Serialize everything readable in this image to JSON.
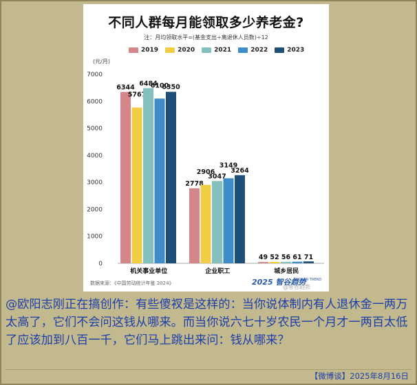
{
  "chart_data": {
    "type": "bar",
    "title": "不同人群每月能领取多少养老金?",
    "note": "注：月均领取水平=(基金支出÷离退休人员数)÷12",
    "unit_label": "(元/月)",
    "categories": [
      "机关事业单位",
      "企业职工",
      "城乡居民"
    ],
    "series": [
      {
        "name": "2019",
        "color": "#d4868a",
        "values": [
          6344,
          2778,
          49
        ]
      },
      {
        "name": "2020",
        "color": "#f1cd45",
        "values": [
          5767,
          2906,
          52
        ]
      },
      {
        "name": "2021",
        "color": "#84c0bd",
        "values": [
          6484,
          3047,
          56
        ]
      },
      {
        "name": "2022",
        "color": "#3f8dc8",
        "values": [
          6100,
          3149,
          61
        ]
      },
      {
        "name": "2023",
        "color": "#1e4f78",
        "values": [
          6350,
          3264,
          71
        ]
      }
    ],
    "ylim": [
      0,
      7000
    ],
    "yticks": [
      0,
      1000,
      2000,
      3000,
      4000,
      5000,
      6000,
      7000
    ],
    "grid": false,
    "legend_position": "top"
  },
  "source": "数据来源：《中国劳动统计年鉴 2024》",
  "brand": "2025 智谷趋势",
  "brand_sub": "TRIGGER TREND",
  "watermark": "@智谷趋势",
  "caption": "@欧阳志刚正在搞创作：有些傻衩是这样的：当你说体制内有人退休金一两万太高了，它们不会问这钱从哪来。而当你说六七十岁农民一个月才一两百太低了应该加到八百一千，它们马上跳出来问：钱从哪来？",
  "footer": "【微博谈】2025年8月16日"
}
